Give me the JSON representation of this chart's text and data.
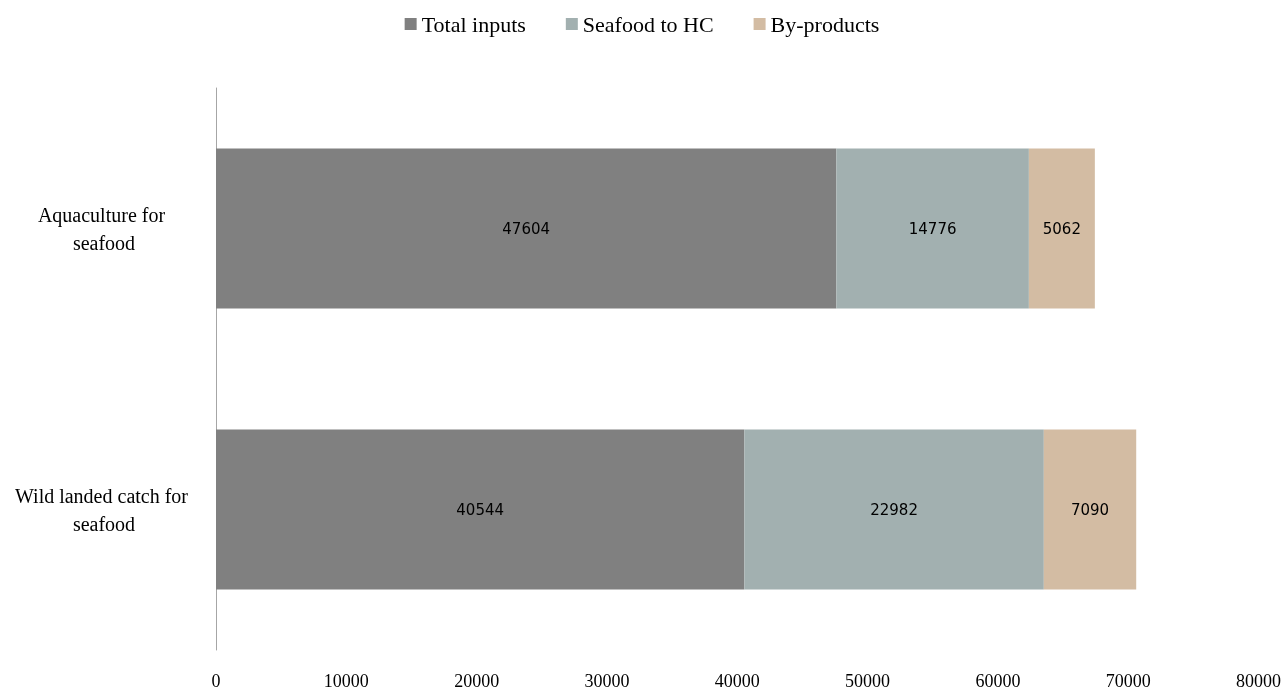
{
  "chart_data": {
    "type": "bar",
    "orientation": "horizontal",
    "stacked": true,
    "categories": [
      "Aquaculture for seafood",
      "Wild landed catch for seafood"
    ],
    "series": [
      {
        "name": "Total inputs",
        "color": "#808080",
        "values": [
          47604,
          40544
        ]
      },
      {
        "name": "Seafood to HC",
        "color": "#a2b0b0",
        "values": [
          14776,
          22982
        ]
      },
      {
        "name": "By-products",
        "color": "#d3bca3",
        "values": [
          5062,
          7090
        ]
      }
    ],
    "xlim": [
      0,
      80000
    ],
    "xticks": [
      0,
      10000,
      20000,
      30000,
      40000,
      50000,
      60000,
      70000,
      80000
    ],
    "data_labels": true,
    "legend": "top",
    "grid": false
  }
}
